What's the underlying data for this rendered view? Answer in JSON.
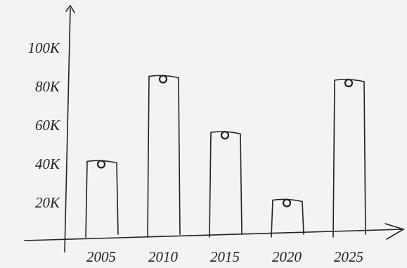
{
  "chart_data": {
    "type": "bar",
    "categories": [
      "2005",
      "2010",
      "2015",
      "2020",
      "2025"
    ],
    "values": [
      42000,
      86000,
      57000,
      22000,
      84000
    ],
    "color": "#222222",
    "ylim": [
      0,
      120000
    ],
    "yticks": [
      {
        "value": 20000,
        "label": "20K"
      },
      {
        "value": 40000,
        "label": "40K"
      },
      {
        "value": 60000,
        "label": "60K"
      },
      {
        "value": 80000,
        "label": "80K"
      },
      {
        "value": 100000,
        "label": "100K"
      }
    ],
    "grid": false
  }
}
